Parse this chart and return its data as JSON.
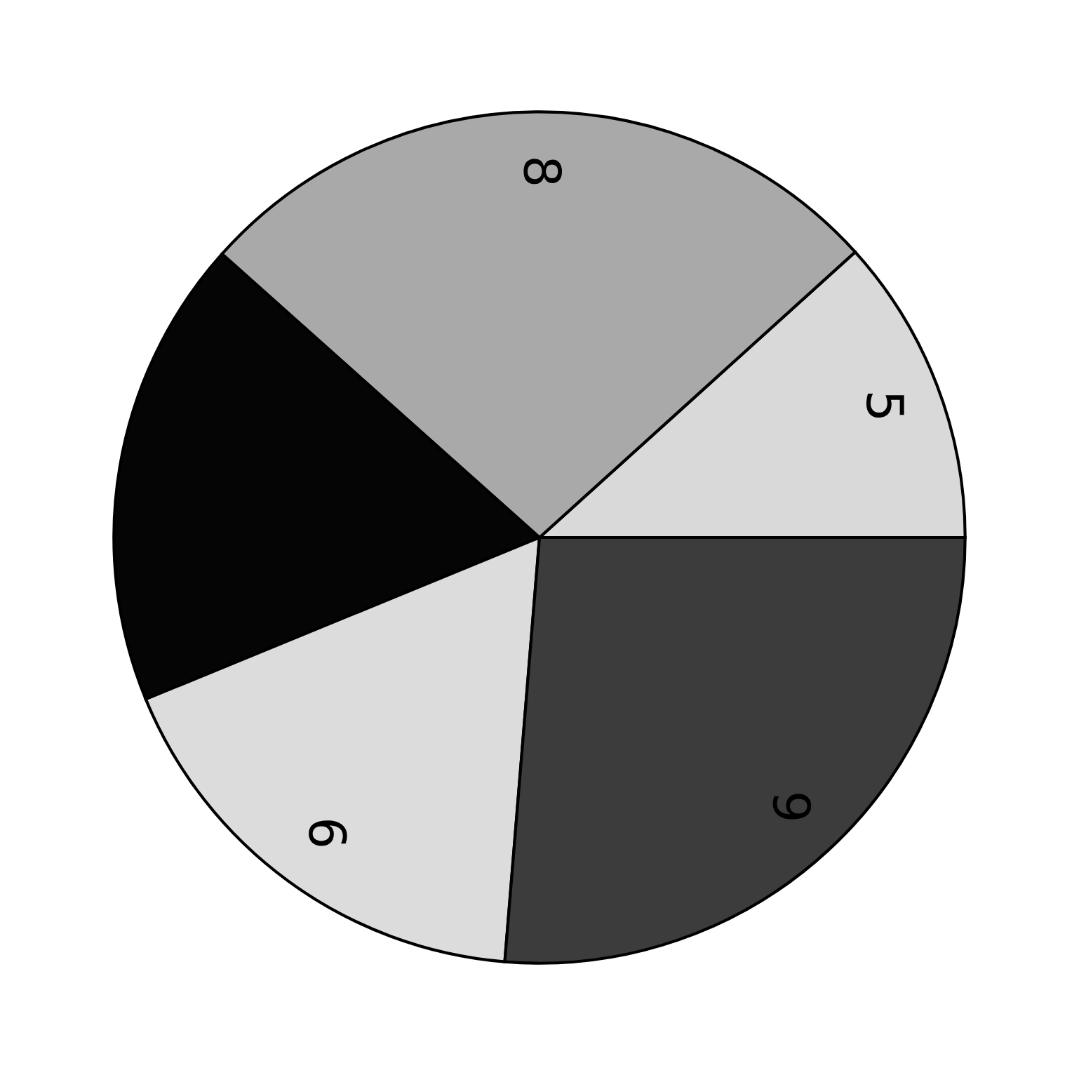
{
  "chart_data": {
    "type": "pie",
    "categories": [
      "5",
      "8",
      null,
      "6",
      "9"
    ],
    "values": [
      11.7,
      26.7,
      17.8,
      17.5,
      26.3
    ],
    "colors": [
      "#d9d9d9",
      "#a9a9a9",
      "#050505",
      "#dcdcdc",
      "#3c3c3c"
    ]
  }
}
